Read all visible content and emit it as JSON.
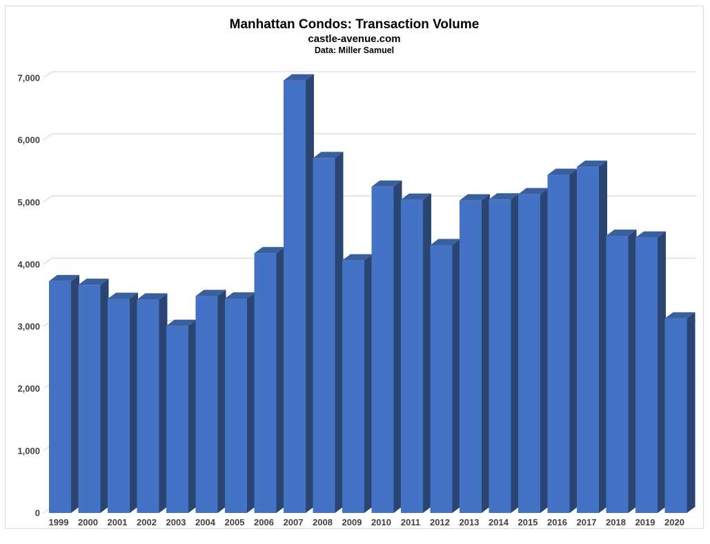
{
  "chart_data": {
    "type": "bar",
    "title": "Manhattan Condos: Transaction Volume",
    "subtitle": "castle-avenue.com",
    "source": "Data: Miller Samuel",
    "xlabel": "",
    "ylabel": "",
    "categories": [
      "1999",
      "2000",
      "2001",
      "2002",
      "2003",
      "2004",
      "2005",
      "2006",
      "2007",
      "2008",
      "2009",
      "2010",
      "2011",
      "2012",
      "2013",
      "2014",
      "2015",
      "2016",
      "2017",
      "2018",
      "2019",
      "2020"
    ],
    "values": [
      3730,
      3670,
      3445,
      3435,
      3010,
      3490,
      3450,
      4180,
      6960,
      5710,
      4065,
      5250,
      5040,
      4310,
      5030,
      5045,
      5130,
      5440,
      5570,
      4460,
      4430,
      3130
    ],
    "ylim": [
      0,
      7000
    ],
    "y_tick_step": 1000,
    "y_tick_labels": [
      "0",
      "1,000",
      "2,000",
      "3,000",
      "4,000",
      "5,000",
      "6,000",
      "7,000"
    ],
    "grid": true,
    "legend": false,
    "style_3d": true,
    "colors": {
      "bar_front": "#4472C4",
      "bar_top": "#3A5F9E",
      "bar_side": "#2B4573",
      "gridline": "#D9D9D9",
      "frame_border": "#D9D9D9",
      "axis_text": "#404040",
      "title_text": "#000000",
      "background": "#FFFFFF"
    }
  }
}
